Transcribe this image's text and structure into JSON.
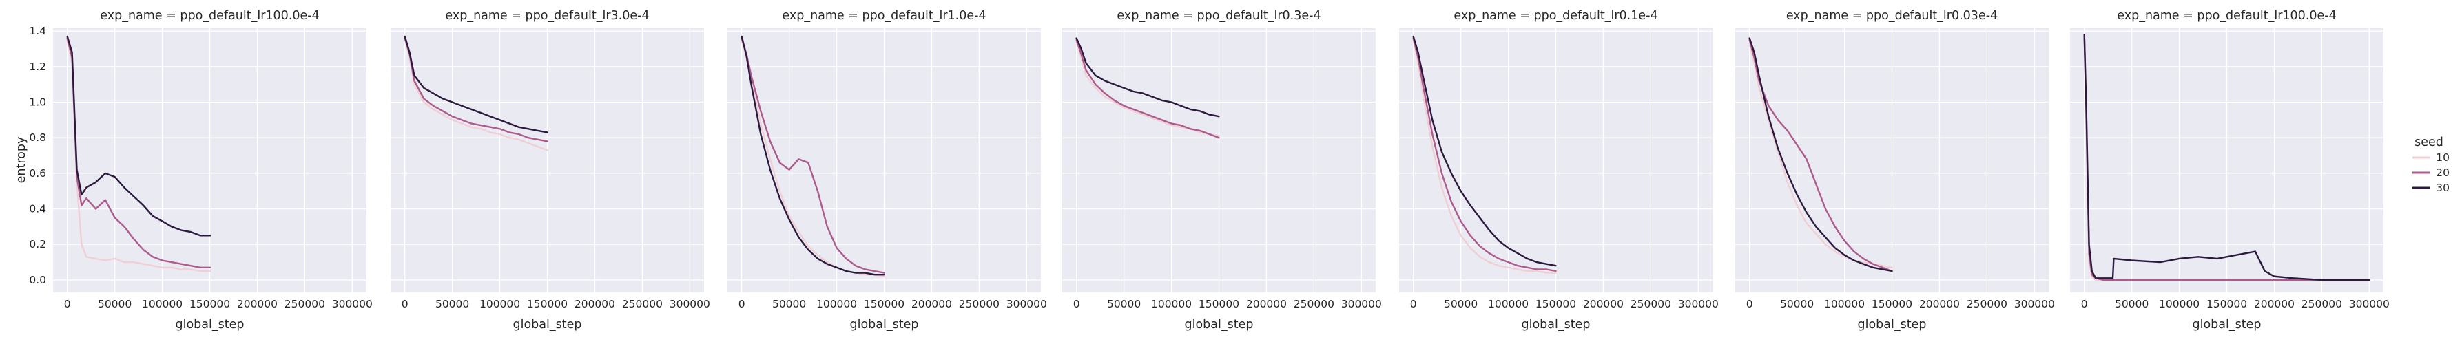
{
  "chart_data": {
    "type": "line",
    "ylabel": "entropy",
    "xlabel": "global_step",
    "xlim": [
      -15000,
      315000
    ],
    "ylim": [
      -0.07,
      1.42
    ],
    "xticks": [
      0,
      50000,
      100000,
      150000,
      200000,
      250000,
      300000
    ],
    "yticks": [
      0.0,
      0.2,
      0.4,
      0.6,
      0.8,
      1.0,
      1.2,
      1.4
    ],
    "grid": true,
    "sharey": true,
    "legend": {
      "title": "seed",
      "placement": "right",
      "entries": [
        {
          "label": "10",
          "color": "#f0cfd4"
        },
        {
          "label": "20",
          "color": "#ad5a8c"
        },
        {
          "label": "30",
          "color": "#2b1a3d"
        }
      ]
    },
    "panels": [
      {
        "title": "exp_name = ppo_default_lr100.0e-4",
        "series": [
          {
            "name": "10",
            "x": [
              0,
              5000,
              10000,
              15000,
              20000,
              30000,
              40000,
              50000,
              60000,
              70000,
              80000,
              90000,
              100000,
              110000,
              120000,
              130000,
              140000,
              150000,
              150500
            ],
            "y": [
              1.35,
              1.22,
              0.55,
              0.2,
              0.13,
              0.12,
              0.11,
              0.12,
              0.1,
              0.1,
              0.09,
              0.08,
              0.07,
              0.07,
              0.06,
              0.06,
              0.05,
              0.05,
              0.05
            ]
          },
          {
            "name": "20",
            "x": [
              0,
              5000,
              10000,
              15000,
              20000,
              30000,
              40000,
              50000,
              60000,
              70000,
              80000,
              90000,
              100000,
              110000,
              120000,
              130000,
              140000,
              150000,
              150500
            ],
            "y": [
              1.36,
              1.25,
              0.58,
              0.42,
              0.46,
              0.4,
              0.45,
              0.35,
              0.3,
              0.23,
              0.17,
              0.13,
              0.11,
              0.1,
              0.09,
              0.08,
              0.07,
              0.07,
              0.07
            ]
          },
          {
            "name": "30",
            "x": [
              0,
              5000,
              10000,
              15000,
              20000,
              30000,
              40000,
              50000,
              60000,
              70000,
              80000,
              90000,
              100000,
              110000,
              120000,
              130000,
              140000,
              150000,
              150500
            ],
            "y": [
              1.37,
              1.28,
              0.62,
              0.48,
              0.52,
              0.55,
              0.6,
              0.58,
              0.52,
              0.47,
              0.42,
              0.36,
              0.33,
              0.3,
              0.28,
              0.27,
              0.25,
              0.25,
              0.25
            ]
          }
        ]
      },
      {
        "title": "exp_name = ppo_default_lr3.0e-4",
        "series": [
          {
            "name": "10",
            "x": [
              0,
              5000,
              10000,
              20000,
              30000,
              40000,
              50000,
              60000,
              70000,
              80000,
              90000,
              100000,
              110000,
              120000,
              130000,
              140000,
              150000
            ],
            "y": [
              1.36,
              1.25,
              1.1,
              1.0,
              0.96,
              0.93,
              0.9,
              0.88,
              0.86,
              0.85,
              0.83,
              0.82,
              0.8,
              0.79,
              0.77,
              0.75,
              0.73
            ]
          },
          {
            "name": "20",
            "x": [
              0,
              5000,
              10000,
              20000,
              30000,
              40000,
              50000,
              60000,
              70000,
              80000,
              90000,
              100000,
              110000,
              120000,
              130000,
              140000,
              150000
            ],
            "y": [
              1.36,
              1.27,
              1.12,
              1.02,
              0.98,
              0.95,
              0.92,
              0.9,
              0.88,
              0.87,
              0.86,
              0.85,
              0.83,
              0.82,
              0.8,
              0.79,
              0.78
            ]
          },
          {
            "name": "30",
            "x": [
              0,
              5000,
              10000,
              20000,
              30000,
              40000,
              50000,
              60000,
              70000,
              80000,
              90000,
              100000,
              110000,
              120000,
              130000,
              140000,
              150000
            ],
            "y": [
              1.37,
              1.28,
              1.15,
              1.08,
              1.05,
              1.02,
              1.0,
              0.98,
              0.96,
              0.94,
              0.92,
              0.9,
              0.88,
              0.86,
              0.85,
              0.84,
              0.83
            ]
          }
        ]
      },
      {
        "title": "exp_name = ppo_default_lr1.0e-4",
        "series": [
          {
            "name": "10",
            "x": [
              0,
              5000,
              10000,
              20000,
              30000,
              40000,
              50000,
              60000,
              70000,
              80000,
              90000,
              100000,
              110000,
              120000,
              130000,
              140000,
              150000
            ],
            "y": [
              1.35,
              1.25,
              1.12,
              0.88,
              0.68,
              0.5,
              0.36,
              0.27,
              0.19,
              0.14,
              0.1,
              0.07,
              0.05,
              0.04,
              0.03,
              0.03,
              0.02
            ]
          },
          {
            "name": "20",
            "x": [
              0,
              5000,
              10000,
              20000,
              30000,
              40000,
              50000,
              60000,
              70000,
              80000,
              90000,
              100000,
              110000,
              120000,
              130000,
              140000,
              150000
            ],
            "y": [
              1.36,
              1.27,
              1.15,
              0.95,
              0.78,
              0.66,
              0.62,
              0.68,
              0.66,
              0.5,
              0.3,
              0.18,
              0.12,
              0.08,
              0.06,
              0.05,
              0.04
            ]
          },
          {
            "name": "30",
            "x": [
              0,
              5000,
              10000,
              20000,
              30000,
              40000,
              50000,
              60000,
              70000,
              80000,
              90000,
              100000,
              110000,
              120000,
              130000,
              140000,
              150000
            ],
            "y": [
              1.37,
              1.26,
              1.1,
              0.82,
              0.62,
              0.46,
              0.34,
              0.24,
              0.17,
              0.12,
              0.09,
              0.07,
              0.05,
              0.04,
              0.04,
              0.03,
              0.03
            ]
          }
        ]
      },
      {
        "title": "exp_name = ppo_default_lr0.3e-4",
        "series": [
          {
            "name": "10",
            "x": [
              0,
              5000,
              10000,
              20000,
              30000,
              40000,
              50000,
              60000,
              70000,
              80000,
              90000,
              100000,
              110000,
              120000,
              130000,
              140000,
              150000
            ],
            "y": [
              1.34,
              1.25,
              1.15,
              1.08,
              1.03,
              1.0,
              0.97,
              0.95,
              0.93,
              0.91,
              0.89,
              0.87,
              0.86,
              0.85,
              0.83,
              0.82,
              0.81
            ]
          },
          {
            "name": "20",
            "x": [
              0,
              5000,
              10000,
              20000,
              30000,
              40000,
              50000,
              60000,
              70000,
              80000,
              90000,
              100000,
              110000,
              120000,
              130000,
              140000,
              150000
            ],
            "y": [
              1.35,
              1.27,
              1.18,
              1.1,
              1.05,
              1.01,
              0.98,
              0.96,
              0.94,
              0.92,
              0.9,
              0.88,
              0.87,
              0.85,
              0.84,
              0.82,
              0.8
            ]
          },
          {
            "name": "30",
            "x": [
              0,
              5000,
              10000,
              20000,
              30000,
              40000,
              50000,
              60000,
              70000,
              80000,
              90000,
              100000,
              110000,
              120000,
              130000,
              140000,
              150000
            ],
            "y": [
              1.36,
              1.3,
              1.22,
              1.15,
              1.12,
              1.1,
              1.08,
              1.06,
              1.05,
              1.03,
              1.01,
              1.0,
              0.98,
              0.96,
              0.95,
              0.93,
              0.92
            ]
          }
        ]
      },
      {
        "title": "exp_name = ppo_default_lr0.1e-4",
        "series": [
          {
            "name": "10",
            "x": [
              0,
              5000,
              10000,
              20000,
              30000,
              40000,
              50000,
              60000,
              70000,
              80000,
              90000,
              100000,
              110000,
              120000,
              130000,
              140000,
              150000
            ],
            "y": [
              1.35,
              1.22,
              1.05,
              0.75,
              0.52,
              0.36,
              0.25,
              0.18,
              0.13,
              0.1,
              0.08,
              0.07,
              0.06,
              0.05,
              0.05,
              0.04,
              0.04
            ]
          },
          {
            "name": "20",
            "x": [
              0,
              5000,
              10000,
              20000,
              30000,
              40000,
              50000,
              60000,
              70000,
              80000,
              90000,
              100000,
              110000,
              120000,
              130000,
              140000,
              150000
            ],
            "y": [
              1.36,
              1.25,
              1.1,
              0.82,
              0.6,
              0.44,
              0.33,
              0.25,
              0.19,
              0.15,
              0.12,
              0.1,
              0.08,
              0.07,
              0.06,
              0.06,
              0.05
            ]
          },
          {
            "name": "30",
            "x": [
              0,
              5000,
              10000,
              20000,
              30000,
              40000,
              50000,
              60000,
              70000,
              80000,
              90000,
              100000,
              110000,
              120000,
              130000,
              140000,
              150000
            ],
            "y": [
              1.37,
              1.28,
              1.15,
              0.9,
              0.72,
              0.6,
              0.5,
              0.42,
              0.35,
              0.28,
              0.22,
              0.18,
              0.15,
              0.12,
              0.1,
              0.09,
              0.08
            ]
          }
        ]
      },
      {
        "title": "exp_name = ppo_default_lr0.03e-4",
        "series": [
          {
            "name": "10",
            "x": [
              0,
              5000,
              10000,
              20000,
              30000,
              40000,
              50000,
              60000,
              70000,
              80000,
              90000,
              100000,
              110000,
              120000,
              130000,
              140000,
              150000
            ],
            "y": [
              1.33,
              1.22,
              1.08,
              0.9,
              0.72,
              0.55,
              0.42,
              0.32,
              0.26,
              0.2,
              0.16,
              0.13,
              0.11,
              0.1,
              0.09,
              0.08,
              0.07
            ]
          },
          {
            "name": "20",
            "x": [
              0,
              5000,
              10000,
              20000,
              30000,
              40000,
              50000,
              60000,
              70000,
              80000,
              90000,
              100000,
              110000,
              120000,
              130000,
              140000,
              150000
            ],
            "y": [
              1.35,
              1.25,
              1.12,
              0.98,
              0.9,
              0.84,
              0.76,
              0.68,
              0.54,
              0.4,
              0.3,
              0.22,
              0.16,
              0.12,
              0.09,
              0.07,
              0.05
            ]
          },
          {
            "name": "30",
            "x": [
              0,
              5000,
              10000,
              20000,
              30000,
              40000,
              50000,
              60000,
              70000,
              80000,
              90000,
              100000,
              110000,
              120000,
              130000,
              140000,
              150000
            ],
            "y": [
              1.36,
              1.28,
              1.15,
              0.92,
              0.74,
              0.6,
              0.48,
              0.38,
              0.3,
              0.24,
              0.18,
              0.14,
              0.11,
              0.09,
              0.07,
              0.06,
              0.05
            ]
          }
        ]
      },
      {
        "title": "exp_name = ppo_default_lr100.0e-4",
        "series": [
          {
            "name": "10",
            "x": [
              0,
              2000,
              5000,
              8000,
              12000,
              20000,
              40000,
              80000,
              120000,
              160000,
              200000,
              250000,
              300000
            ],
            "y": [
              1.38,
              0.9,
              0.1,
              0.02,
              0.0,
              0.0,
              0.0,
              0.0,
              0.0,
              0.0,
              0.0,
              0.0,
              0.0
            ]
          },
          {
            "name": "20",
            "x": [
              0,
              2000,
              5000,
              8000,
              12000,
              20000,
              40000,
              80000,
              120000,
              160000,
              200000,
              250000,
              300000
            ],
            "y": [
              1.38,
              0.95,
              0.15,
              0.03,
              0.01,
              0.0,
              0.0,
              0.0,
              0.0,
              0.0,
              0.0,
              0.0,
              0.0
            ]
          },
          {
            "name": "30",
            "x": [
              0,
              2000,
              5000,
              8000,
              12000,
              20000,
              30000,
              31000,
              50000,
              80000,
              100000,
              120000,
              140000,
              160000,
              180000,
              190000,
              200000,
              220000,
              250000,
              300000
            ],
            "y": [
              1.38,
              1.0,
              0.2,
              0.05,
              0.01,
              0.01,
              0.01,
              0.12,
              0.11,
              0.1,
              0.12,
              0.13,
              0.12,
              0.14,
              0.16,
              0.05,
              0.02,
              0.01,
              0.0,
              0.0
            ]
          }
        ]
      }
    ]
  }
}
